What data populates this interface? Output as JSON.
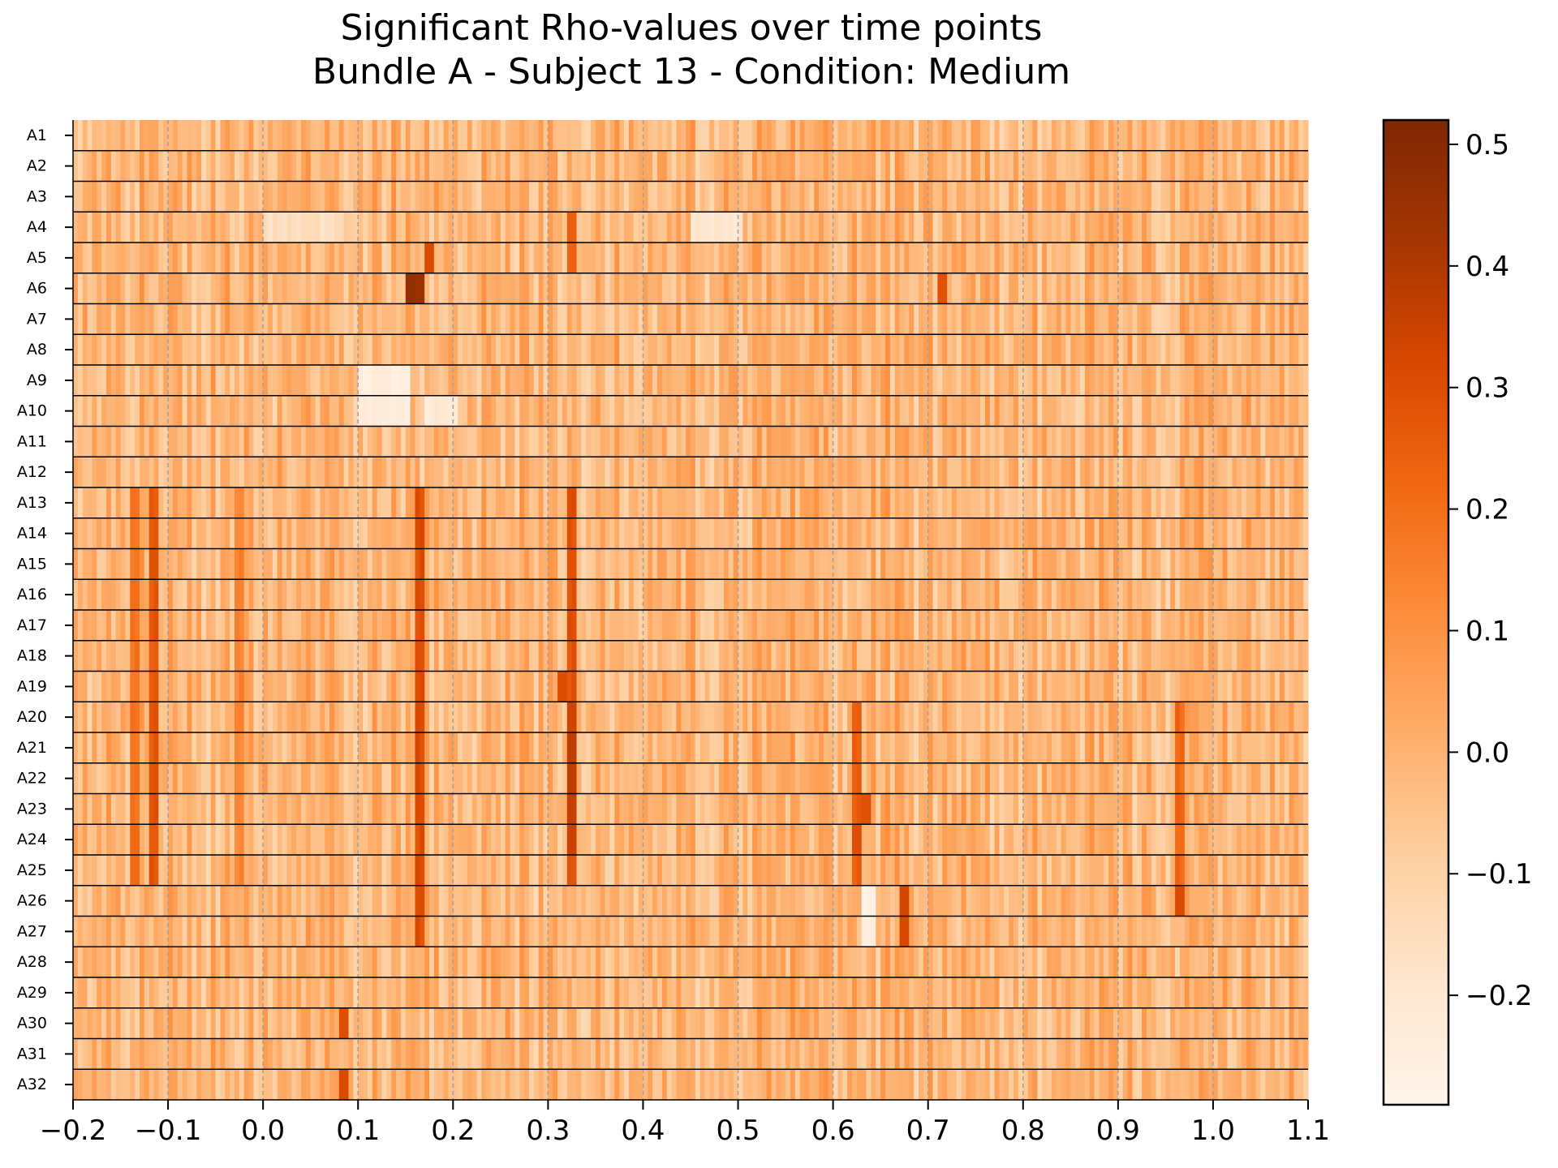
{
  "chart_data": {
    "type": "heatmap",
    "title": [
      "Significant Rho-values over time points",
      "Bundle A - Subject 13 - Condition: Medium"
    ],
    "xlabel": "",
    "ylabel": "",
    "x_range": [
      -0.2,
      1.1
    ],
    "x_ticks": [
      "−0.2",
      "−0.1",
      "0.0",
      "0.1",
      "0.2",
      "0.3",
      "0.4",
      "0.5",
      "0.6",
      "0.7",
      "0.8",
      "0.9",
      "1.0",
      "1.1"
    ],
    "rows": [
      "A1",
      "A2",
      "A3",
      "A4",
      "A5",
      "A6",
      "A7",
      "A8",
      "A9",
      "A10",
      "A11",
      "A12",
      "A13",
      "A14",
      "A15",
      "A16",
      "A17",
      "A18",
      "A19",
      "A20",
      "A21",
      "A22",
      "A23",
      "A24",
      "A25",
      "A26",
      "A27",
      "A28",
      "A29",
      "A30",
      "A31",
      "A32"
    ],
    "colormap": "Oranges",
    "colorscale_range": [
      -0.29,
      0.52
    ],
    "colorbar_ticks": [
      "−0.2",
      "−0.1",
      "0.0",
      "0.1",
      "0.2",
      "0.3",
      "0.4",
      "0.5"
    ],
    "vertical_grid": "dashed gray at every 0.1",
    "row_separators": true,
    "hotspots": [
      {
        "row": "A6",
        "x": 0.15,
        "value": 0.47
      },
      {
        "row": "A6",
        "x": 0.16,
        "value": 0.45
      },
      {
        "row": "A5",
        "x": 0.17,
        "value": 0.31
      },
      {
        "row": "A6",
        "x": 0.71,
        "value": 0.29
      },
      {
        "row": "A19",
        "x": 0.31,
        "value": 0.3
      },
      {
        "row": "A20",
        "x": 0.32,
        "value": 0.34
      },
      {
        "row": "A21",
        "x": 0.32,
        "value": 0.38
      },
      {
        "row": "A22",
        "x": 0.32,
        "value": 0.37
      },
      {
        "row": "A23",
        "x": 0.32,
        "value": 0.36
      },
      {
        "row": "A24",
        "x": 0.32,
        "value": 0.35
      },
      {
        "row": "A26",
        "x": 0.67,
        "value": 0.33
      },
      {
        "row": "A27",
        "x": 0.67,
        "value": 0.32
      },
      {
        "row": "A26",
        "x": 0.96,
        "value": 0.31
      },
      {
        "row": "A23",
        "x": 0.63,
        "value": 0.29
      },
      {
        "row": "A24",
        "x": 0.62,
        "value": 0.3
      },
      {
        "row": "A30",
        "x": 0.08,
        "value": 0.3
      },
      {
        "row": "A32",
        "x": 0.08,
        "value": 0.31
      }
    ],
    "column_patterns": [
      {
        "x": -0.14,
        "rows": "A13-A25",
        "value": 0.19
      },
      {
        "x": -0.12,
        "rows": "A13-A25",
        "value": 0.27
      },
      {
        "x": 0.16,
        "rows": "A13-A27",
        "value": 0.3
      },
      {
        "x": 0.32,
        "rows": "A13-A25",
        "value": 0.29
      },
      {
        "x": 0.62,
        "rows": "A20-A25",
        "value": 0.24
      },
      {
        "x": 0.96,
        "rows": "A20-A25",
        "value": 0.22
      },
      {
        "x": -0.03,
        "rows": "A13-A25",
        "value": 0.14
      },
      {
        "x": 0.32,
        "rows": "A4-A5",
        "value": 0.24
      }
    ],
    "low_regions": [
      {
        "x": [
          0.1,
          0.15
        ],
        "rows": "A9-A10",
        "value": -0.24
      },
      {
        "x": [
          0.17,
          0.2
        ],
        "rows": "A10",
        "value": -0.22
      },
      {
        "x": [
          0.0,
          0.08
        ],
        "rows": "A4",
        "value": -0.15
      },
      {
        "x": [
          0.63,
          0.64
        ],
        "rows": "A26-A27",
        "value": -0.26
      },
      {
        "x": [
          0.45,
          0.5
        ],
        "rows": "A4",
        "value": -0.2
      }
    ],
    "background_mean": -0.01
  }
}
